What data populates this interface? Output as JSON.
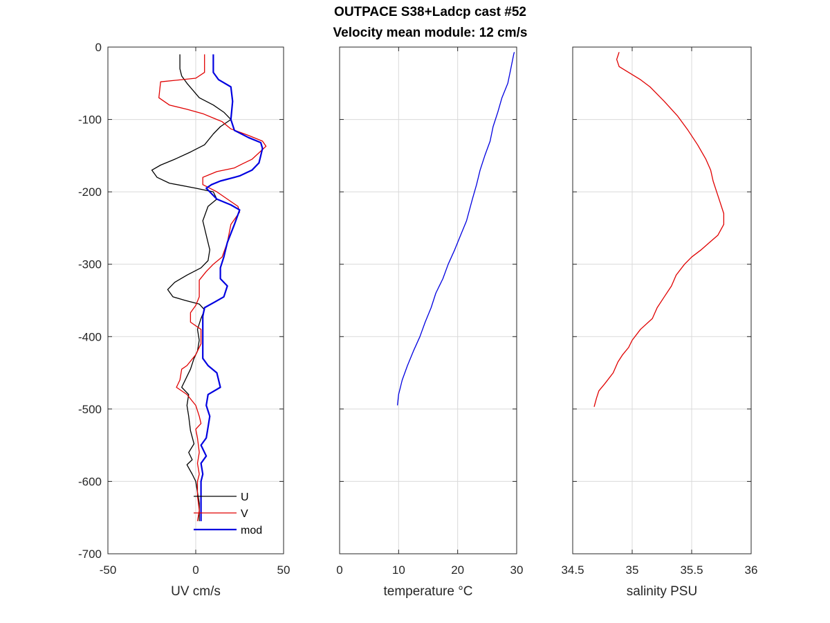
{
  "chart_data": {
    "title": [
      "OUTPACE S38+Ladcp cast #52",
      "Velocity mean module:  12 cm/s"
    ],
    "panels": [
      {
        "id": "uv",
        "type": "line",
        "xlabel": "UV cm/s",
        "xlim": [
          -50,
          50
        ],
        "xticks": [
          -50,
          0,
          50
        ],
        "ylim": [
          -700,
          0
        ],
        "yticks": [
          0,
          -100,
          -200,
          -300,
          -400,
          -500,
          -600,
          -700
        ],
        "grid": true,
        "legend": {
          "placement": "bottom-right",
          "entries": [
            "U",
            "V",
            "mod"
          ]
        },
        "series": [
          {
            "name": "U",
            "color": "#000000",
            "points": [
              [
                -9,
                -10
              ],
              [
                -9,
                -30
              ],
              [
                -8,
                -40
              ],
              [
                -5,
                -50
              ],
              [
                2,
                -70
              ],
              [
                10,
                -80
              ],
              [
                16,
                -90
              ],
              [
                20,
                -100
              ],
              [
                14,
                -110
              ],
              [
                10,
                -120
              ],
              [
                5,
                -135
              ],
              [
                -3,
                -145
              ],
              [
                -12,
                -155
              ],
              [
                -20,
                -163
              ],
              [
                -25,
                -170
              ],
              [
                -22,
                -180
              ],
              [
                -15,
                -188
              ],
              [
                0,
                -195
              ],
              [
                10,
                -200
              ],
              [
                12,
                -210
              ],
              [
                7,
                -220
              ],
              [
                4,
                -240
              ],
              [
                6,
                -260
              ],
              [
                8,
                -280
              ],
              [
                7,
                -295
              ],
              [
                3,
                -305
              ],
              [
                -5,
                -315
              ],
              [
                -12,
                -325
              ],
              [
                -16,
                -335
              ],
              [
                -13,
                -345
              ],
              [
                -6,
                -350
              ],
              [
                2,
                -355
              ],
              [
                5,
                -363
              ],
              [
                3,
                -375
              ],
              [
                1,
                -390
              ],
              [
                2,
                -405
              ],
              [
                1,
                -420
              ],
              [
                -1,
                -430
              ],
              [
                -3,
                -445
              ],
              [
                -5,
                -455
              ],
              [
                -8,
                -470
              ],
              [
                -4,
                -480
              ],
              [
                -5,
                -495
              ],
              [
                -4,
                -510
              ],
              [
                -3,
                -530
              ],
              [
                -1,
                -548
              ],
              [
                -4,
                -560
              ],
              [
                -2,
                -570
              ],
              [
                -5,
                -577
              ],
              [
                -2,
                -590
              ],
              [
                0,
                -600
              ],
              [
                1,
                -615
              ],
              [
                2,
                -630
              ],
              [
                2,
                -650
              ],
              [
                2,
                -655
              ]
            ]
          },
          {
            "name": "V",
            "color": "#e00000",
            "points": [
              [
                5,
                -10
              ],
              [
                5,
                -35
              ],
              [
                0,
                -43
              ],
              [
                -20,
                -48
              ],
              [
                -21,
                -70
              ],
              [
                -15,
                -80
              ],
              [
                -5,
                -86
              ],
              [
                4,
                -92
              ],
              [
                12,
                -100
              ],
              [
                15,
                -103
              ],
              [
                20,
                -113
              ],
              [
                30,
                -122
              ],
              [
                38,
                -130
              ],
              [
                40,
                -137
              ],
              [
                32,
                -155
              ],
              [
                26,
                -162
              ],
              [
                22,
                -167
              ],
              [
                12,
                -172
              ],
              [
                4,
                -180
              ],
              [
                4,
                -190
              ],
              [
                12,
                -200
              ],
              [
                18,
                -210
              ],
              [
                24,
                -220
              ],
              [
                25,
                -228
              ],
              [
                20,
                -245
              ],
              [
                18,
                -270
              ],
              [
                15,
                -290
              ],
              [
                10,
                -300
              ],
              [
                6,
                -310
              ],
              [
                2,
                -322
              ],
              [
                2,
                -345
              ],
              [
                0,
                -357
              ],
              [
                -3,
                -367
              ],
              [
                -3,
                -380
              ],
              [
                3,
                -390
              ],
              [
                3,
                -410
              ],
              [
                0,
                -425
              ],
              [
                -5,
                -440
              ],
              [
                -8,
                -445
              ],
              [
                -9,
                -460
              ],
              [
                -11,
                -470
              ],
              [
                -5,
                -480
              ],
              [
                0,
                -495
              ],
              [
                2,
                -510
              ],
              [
                3,
                -520
              ],
              [
                0,
                -528
              ],
              [
                1,
                -540
              ],
              [
                2,
                -560
              ],
              [
                1,
                -575
              ],
              [
                2,
                -590
              ],
              [
                1,
                -600
              ],
              [
                1,
                -620
              ],
              [
                2,
                -640
              ],
              [
                1,
                -655
              ]
            ]
          },
          {
            "name": "mod",
            "color": "#0000e0",
            "points": [
              [
                10,
                -10
              ],
              [
                10,
                -35
              ],
              [
                13,
                -45
              ],
              [
                20,
                -55
              ],
              [
                21,
                -75
              ],
              [
                20,
                -100
              ],
              [
                22,
                -115
              ],
              [
                30,
                -125
              ],
              [
                37,
                -132
              ],
              [
                38,
                -140
              ],
              [
                37,
                -150
              ],
              [
                36,
                -160
              ],
              [
                32,
                -170
              ],
              [
                25,
                -178
              ],
              [
                22,
                -180
              ],
              [
                14,
                -185
              ],
              [
                9,
                -190
              ],
              [
                6,
                -195
              ],
              [
                12,
                -210
              ],
              [
                20,
                -218
              ],
              [
                25,
                -225
              ],
              [
                22,
                -245
              ],
              [
                18,
                -270
              ],
              [
                16,
                -290
              ],
              [
                14,
                -305
              ],
              [
                14,
                -320
              ],
              [
                18,
                -330
              ],
              [
                16,
                -345
              ],
              [
                11,
                -352
              ],
              [
                5,
                -360
              ],
              [
                4,
                -372
              ],
              [
                4,
                -385
              ],
              [
                4,
                -410
              ],
              [
                4,
                -430
              ],
              [
                7,
                -440
              ],
              [
                12,
                -450
              ],
              [
                14,
                -470
              ],
              [
                7,
                -480
              ],
              [
                6,
                -495
              ],
              [
                8,
                -510
              ],
              [
                7,
                -525
              ],
              [
                6,
                -540
              ],
              [
                3,
                -550
              ],
              [
                6,
                -565
              ],
              [
                3,
                -575
              ],
              [
                4,
                -590
              ],
              [
                3,
                -600
              ],
              [
                3,
                -620
              ],
              [
                3,
                -640
              ],
              [
                3,
                -655
              ]
            ]
          }
        ]
      },
      {
        "id": "temperature",
        "type": "line",
        "xlabel": "temperature °C",
        "xlim": [
          0,
          30
        ],
        "xticks": [
          0,
          10,
          20,
          30
        ],
        "ylim": [
          -700,
          0
        ],
        "grid": true,
        "series": [
          {
            "name": "",
            "color": "#0000e0",
            "points": [
              [
                29.6,
                -7
              ],
              [
                29.5,
                -10
              ],
              [
                29.0,
                -30
              ],
              [
                28.5,
                -50
              ],
              [
                27.5,
                -70
              ],
              [
                26.8,
                -90
              ],
              [
                26.0,
                -110
              ],
              [
                25.5,
                -130
              ],
              [
                24.6,
                -150
              ],
              [
                23.8,
                -170
              ],
              [
                23.2,
                -190
              ],
              [
                22.5,
                -210
              ],
              [
                21.5,
                -240
              ],
              [
                20.5,
                -260
              ],
              [
                19.5,
                -280
              ],
              [
                18.4,
                -300
              ],
              [
                17.5,
                -320
              ],
              [
                16.3,
                -340
              ],
              [
                15.5,
                -360
              ],
              [
                14.5,
                -380
              ],
              [
                13.6,
                -400
              ],
              [
                12.5,
                -420
              ],
              [
                11.5,
                -440
              ],
              [
                10.6,
                -460
              ],
              [
                10.0,
                -480
              ],
              [
                9.8,
                -495
              ]
            ]
          }
        ]
      },
      {
        "id": "salinity",
        "type": "line",
        "xlabel": "salinity PSU",
        "xlim": [
          34.5,
          36
        ],
        "xticks": [
          34.5,
          35,
          35.5,
          36
        ],
        "ylim": [
          -700,
          0
        ],
        "grid": true,
        "series": [
          {
            "name": "",
            "color": "#e00000",
            "points": [
              [
                34.89,
                -7
              ],
              [
                34.88,
                -12
              ],
              [
                34.87,
                -17
              ],
              [
                34.89,
                -27
              ],
              [
                34.97,
                -35
              ],
              [
                35.07,
                -45
              ],
              [
                35.15,
                -55
              ],
              [
                35.27,
                -75
              ],
              [
                35.38,
                -95
              ],
              [
                35.47,
                -115
              ],
              [
                35.55,
                -135
              ],
              [
                35.62,
                -155
              ],
              [
                35.66,
                -170
              ],
              [
                35.68,
                -185
              ],
              [
                35.71,
                -200
              ],
              [
                35.74,
                -215
              ],
              [
                35.77,
                -230
              ],
              [
                35.77,
                -245
              ],
              [
                35.72,
                -260
              ],
              [
                35.65,
                -270
              ],
              [
                35.58,
                -280
              ],
              [
                35.5,
                -290
              ],
              [
                35.44,
                -300
              ],
              [
                35.37,
                -315
              ],
              [
                35.33,
                -330
              ],
              [
                35.27,
                -345
              ],
              [
                35.21,
                -360
              ],
              [
                35.17,
                -375
              ],
              [
                35.07,
                -390
              ],
              [
                35.0,
                -405
              ],
              [
                34.97,
                -415
              ],
              [
                34.92,
                -425
              ],
              [
                34.88,
                -435
              ],
              [
                34.84,
                -450
              ],
              [
                34.77,
                -465
              ],
              [
                34.72,
                -475
              ],
              [
                34.7,
                -485
              ],
              [
                34.68,
                -497
              ]
            ]
          }
        ]
      }
    ]
  }
}
